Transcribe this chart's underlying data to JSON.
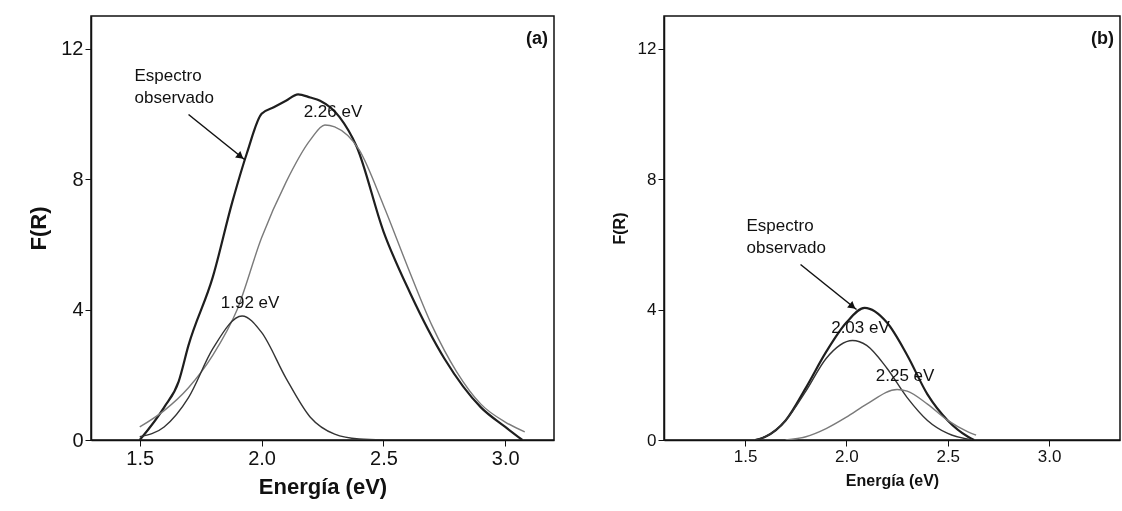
{
  "chart_data": [
    {
      "type": "line",
      "xlabel": "Energía (eV)",
      "ylabel": "F(R)",
      "xlim": [
        1.3,
        3.2
      ],
      "ylim": [
        0,
        13
      ],
      "xticks": [
        {
          "value": 1.5,
          "label": "1.5"
        },
        {
          "value": 2,
          "label": "2.0"
        },
        {
          "value": 2.5,
          "label": "2.5"
        },
        {
          "value": 3,
          "label": "3.0"
        }
      ],
      "yticks": [
        0,
        4,
        8,
        12
      ],
      "series": [
        {
          "color": "#1e1e1e",
          "x": [
            1.5,
            1.6,
            1.66,
            1.7,
            1.8,
            1.88,
            1.94,
            2.0,
            2.05,
            2.1,
            2.15,
            2.2,
            2.24,
            2.32,
            2.39,
            2.5,
            2.61,
            2.75,
            2.9,
            3.0,
            3.07
          ],
          "values": [
            0,
            1.0,
            1.8,
            2.9,
            5.0,
            7.3,
            8.8,
            10.0,
            10.2,
            10.4,
            10.6,
            10.5,
            10.4,
            9.9,
            9.0,
            6.4,
            4.5,
            2.5,
            1.0,
            0.4,
            0
          ]
        },
        {
          "color": "#7a7a7a",
          "x": [
            1.5,
            1.6,
            1.7,
            1.8,
            1.9,
            2.0,
            2.1,
            2.2,
            2.26,
            2.3,
            2.4,
            2.5,
            2.6,
            2.7,
            2.8,
            2.9,
            3.0,
            3.08
          ],
          "values": [
            0.4,
            0.9,
            1.6,
            2.6,
            4.0,
            6.2,
            7.9,
            9.2,
            9.66,
            9.6,
            8.9,
            7.2,
            5.3,
            3.5,
            2.1,
            1.1,
            0.55,
            0.25
          ]
        },
        {
          "color": "#333333",
          "x": [
            1.5,
            1.6,
            1.7,
            1.8,
            1.92,
            2.0,
            2.1,
            2.2,
            2.3,
            2.4,
            2.5
          ],
          "values": [
            0.1,
            0.4,
            1.3,
            2.8,
            3.8,
            3.3,
            1.9,
            0.7,
            0.18,
            0.03,
            0
          ]
        }
      ],
      "annotations": [
        "(a)",
        {
          "text": "Espectro\nobservado",
          "x": 1.93,
          "y": 8.6
        },
        {
          "text": "2.26 eV",
          "x": 2.26,
          "y": 9.66
        },
        {
          "text": "1.92 eV",
          "x": 1.92,
          "y": 3.8
        }
      ]
    },
    {
      "type": "line",
      "xlabel": "Energía (eV)",
      "ylabel": "F(R)",
      "xlim": [
        1.1,
        3.35
      ],
      "ylim": [
        0,
        13
      ],
      "xticks": [
        {
          "value": 1.5,
          "label": "1.5"
        },
        {
          "value": 2,
          "label": "2.0"
        },
        {
          "value": 2.5,
          "label": "2.5"
        },
        {
          "value": 3,
          "label": "3.0"
        }
      ],
      "yticks": [
        0,
        4,
        8,
        12
      ],
      "series": [
        {
          "color": "#1e1e1e",
          "x": [
            1.55,
            1.6,
            1.7,
            1.8,
            1.9,
            2.0,
            2.09,
            2.2,
            2.3,
            2.4,
            2.5,
            2.6,
            2.63
          ],
          "values": [
            0,
            0.1,
            0.6,
            1.6,
            2.7,
            3.6,
            4.05,
            3.6,
            2.6,
            1.4,
            0.6,
            0.1,
            0
          ]
        },
        {
          "color": "#333333",
          "x": [
            1.55,
            1.6,
            1.7,
            1.8,
            1.9,
            2.03,
            2.1,
            2.2,
            2.3,
            2.4,
            2.5,
            2.62
          ],
          "values": [
            0,
            0.1,
            0.6,
            1.5,
            2.5,
            3.05,
            2.9,
            2.2,
            1.3,
            0.6,
            0.2,
            0
          ]
        },
        {
          "color": "#7a7a7a",
          "x": [
            1.7,
            1.8,
            1.9,
            2.0,
            2.1,
            2.25,
            2.3,
            2.4,
            2.5,
            2.6,
            2.64
          ],
          "values": [
            0,
            0.1,
            0.35,
            0.7,
            1.1,
            1.55,
            1.5,
            1.1,
            0.6,
            0.25,
            0.15
          ]
        }
      ],
      "annotations": [
        "(b)",
        {
          "text": "Espectro\nobservado",
          "x": 2.05,
          "y": 4.0
        },
        {
          "text": "2.03 eV",
          "x": 2.03,
          "y": 3.05
        },
        {
          "text": "2.25 eV",
          "x": 2.25,
          "y": 1.55
        }
      ]
    }
  ]
}
